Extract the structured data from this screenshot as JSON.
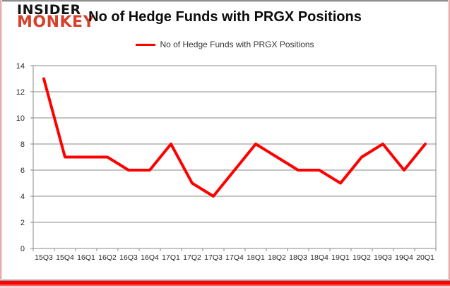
{
  "logo": {
    "line1": "INSIDER",
    "line2": "MONKEY",
    "monkey_color": "#d7402b"
  },
  "title": "No of Hedge Funds with PRGX Positions",
  "legend": {
    "label": "No of Hedge Funds with PRGX Positions",
    "line_color": "#ff0000"
  },
  "chart_data": {
    "type": "line",
    "title": "No of Hedge Funds with PRGX Positions",
    "categories": [
      "15Q3",
      "15Q4",
      "16Q1",
      "16Q2",
      "16Q3",
      "16Q4",
      "17Q1",
      "17Q2",
      "17Q3",
      "17Q4",
      "18Q1",
      "18Q2",
      "18Q3",
      "18Q4",
      "19Q1",
      "19Q2",
      "19Q3",
      "19Q4",
      "20Q1"
    ],
    "series": [
      {
        "name": "No of Hedge Funds with PRGX Positions",
        "values": [
          13,
          7,
          7,
          7,
          6,
          6,
          8,
          5,
          4,
          6,
          8,
          7,
          6,
          6,
          5,
          7,
          8,
          6,
          8
        ],
        "color": "#ff0000"
      }
    ],
    "xlabel": "",
    "ylabel": "",
    "ylim": [
      0,
      14
    ],
    "ytick_step": 2,
    "yticks": [
      0,
      2,
      4,
      6,
      8,
      10,
      12,
      14
    ],
    "grid": true,
    "legend_position": "top-center",
    "gridline_color": "#8a8a8a",
    "text_color": "#262626",
    "line_width": 4
  },
  "colors": {
    "accent_red": "#ff0000",
    "logo_red": "#d7402b",
    "border_pink": "#eda9a9",
    "border_gray": "#9a9a9a",
    "background": "#ffffff"
  }
}
